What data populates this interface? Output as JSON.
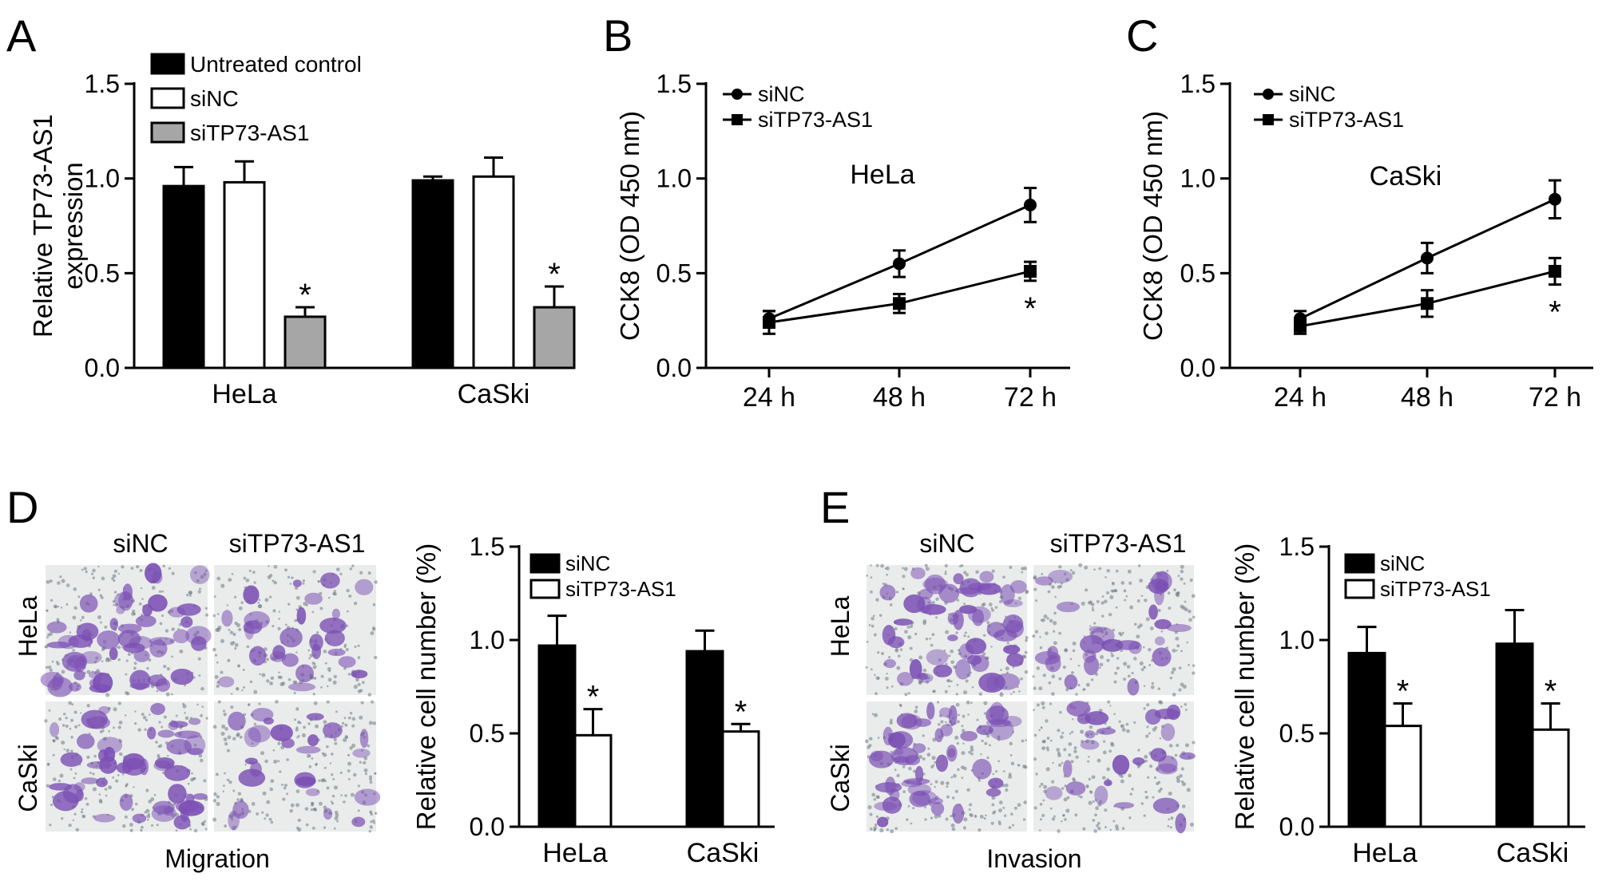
{
  "colors": {
    "black": "#000000",
    "white": "#ffffff",
    "gray": "#a6a6a6",
    "stain": "#7b4fb4",
    "background": "#e9ecea"
  },
  "panels": [
    {
      "letter": "A",
      "chart_data": {
        "type": "bar",
        "ylabel_lines": [
          "Relative TP73-AS1",
          "expression"
        ],
        "ylim": [
          0,
          1.5
        ],
        "yticks": [
          "0.0",
          "0.5",
          "1.0",
          "1.5"
        ],
        "categories": [
          "HeLa",
          "CaSki"
        ],
        "series": [
          {
            "name": "Untreated control",
            "color": "#000000",
            "values": [
              0.96,
              0.99
            ],
            "errors": [
              0.1,
              0.02
            ],
            "sig": [
              "",
              ""
            ]
          },
          {
            "name": "siNC",
            "color": "#ffffff",
            "values": [
              0.98,
              1.01
            ],
            "errors": [
              0.11,
              0.1
            ],
            "sig": [
              "",
              ""
            ]
          },
          {
            "name": "siTP73-AS1",
            "color": "#a6a6a6",
            "values": [
              0.27,
              0.32
            ],
            "errors": [
              0.05,
              0.11
            ],
            "sig": [
              "*",
              "*"
            ]
          }
        ],
        "legend": "top-left",
        "grid": false
      }
    },
    {
      "letter": "B",
      "chart_data": {
        "type": "line",
        "title": "HeLa",
        "ylabel": "CCK8 (OD 450 nm)",
        "ylim": [
          0,
          1.5
        ],
        "yticks": [
          "0.0",
          "0.5",
          "1.0",
          "1.5"
        ],
        "x": [
          "24 h",
          "48 h",
          "72 h"
        ],
        "series": [
          {
            "name": "siNC",
            "marker": "circle",
            "values": [
              0.26,
              0.55,
              0.86
            ],
            "errors": [
              0.04,
              0.07,
              0.09
            ]
          },
          {
            "name": "siTP73-AS1",
            "marker": "square",
            "values": [
              0.24,
              0.34,
              0.51
            ],
            "errors": [
              0.06,
              0.05,
              0.05
            ]
          }
        ],
        "sig_label": "*",
        "legend": "top-left",
        "grid": false
      }
    },
    {
      "letter": "C",
      "chart_data": {
        "type": "line",
        "title": "CaSki",
        "ylabel": "CCK8 (OD 450 nm)",
        "ylim": [
          0,
          1.5
        ],
        "yticks": [
          "0.0",
          "0.5",
          "1.0",
          "1.5"
        ],
        "x": [
          "24 h",
          "48 h",
          "72 h"
        ],
        "series": [
          {
            "name": "siNC",
            "marker": "circle",
            "values": [
              0.26,
              0.58,
              0.89
            ],
            "errors": [
              0.04,
              0.08,
              0.1
            ]
          },
          {
            "name": "siTP73-AS1",
            "marker": "square",
            "values": [
              0.22,
              0.34,
              0.51
            ],
            "errors": [
              0.04,
              0.07,
              0.07
            ]
          }
        ],
        "sig_label": "*",
        "legend": "top-left",
        "grid": false
      }
    },
    {
      "letter": "D",
      "micrograph": {
        "columns": [
          "siNC",
          "siTP73-AS1"
        ],
        "rows": [
          "HeLa",
          "CaSki"
        ],
        "caption": "Migration",
        "stain_density": [
          0.9,
          0.35,
          0.85,
          0.3
        ]
      },
      "chart_data": {
        "type": "bar",
        "ylabel": "Relative cell number (%)",
        "ylim": [
          0,
          1.5
        ],
        "yticks": [
          "0.0",
          "0.5",
          "1.0",
          "1.5"
        ],
        "categories": [
          "HeLa",
          "CaSki"
        ],
        "series": [
          {
            "name": "siNC",
            "color": "#000000",
            "values": [
              0.97,
              0.94
            ],
            "errors": [
              0.16,
              0.11
            ],
            "sig": [
              "",
              ""
            ]
          },
          {
            "name": "siTP73-AS1",
            "color": "#ffffff",
            "values": [
              0.49,
              0.51
            ],
            "errors": [
              0.14,
              0.04
            ],
            "sig": [
              "*",
              "*"
            ]
          }
        ],
        "legend": "top-center",
        "grid": false
      }
    },
    {
      "letter": "E",
      "micrograph": {
        "columns": [
          "siNC",
          "siTP73-AS1"
        ],
        "rows": [
          "HeLa",
          "CaSki"
        ],
        "caption": "Invasion",
        "stain_density": [
          0.85,
          0.35,
          0.8,
          0.3
        ]
      },
      "chart_data": {
        "type": "bar",
        "ylabel": "Relative cell number (%)",
        "ylim": [
          0,
          1.5
        ],
        "yticks": [
          "0.0",
          "0.5",
          "1.0",
          "1.5"
        ],
        "categories": [
          "HeLa",
          "CaSki"
        ],
        "series": [
          {
            "name": "siNC",
            "color": "#000000",
            "values": [
              0.93,
              0.98
            ],
            "errors": [
              0.14,
              0.18
            ],
            "sig": [
              "",
              ""
            ]
          },
          {
            "name": "siTP73-AS1",
            "color": "#ffffff",
            "values": [
              0.54,
              0.52
            ],
            "errors": [
              0.12,
              0.14
            ],
            "sig": [
              "*",
              "*"
            ]
          }
        ],
        "legend": "top-center",
        "grid": false
      }
    }
  ]
}
